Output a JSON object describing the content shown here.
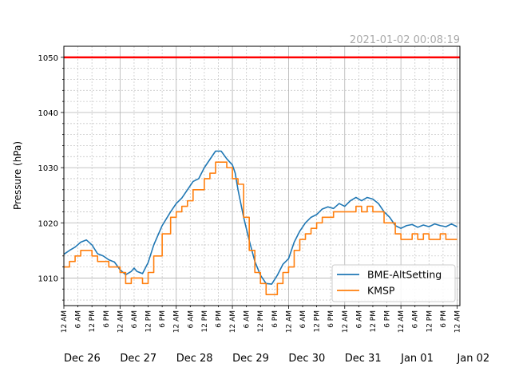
{
  "chart_data": {
    "type": "line",
    "timestamp": "2021-01-02 00:08:19",
    "ylabel": "Pressure (hPa)",
    "xlabel": "",
    "ylim": [
      1005,
      1052
    ],
    "xlim": [
      0,
      7.05
    ],
    "y_ticks": [
      1010,
      1020,
      1030,
      1040,
      1050
    ],
    "grid": true,
    "legend_position": "lower-right",
    "hour_tick_labels": [
      "12 AM",
      "6 AM",
      "12 PM",
      "6 PM"
    ],
    "day_labels": [
      "Dec 26",
      "Dec 27",
      "Dec 28",
      "Dec 29",
      "Dec 30",
      "Dec 31",
      "Jan 01",
      "Jan 02"
    ],
    "reference_line": {
      "value": 1050,
      "color": "#ff0000"
    },
    "series": [
      {
        "name": "BME-AltSetting",
        "color": "#1f77b4",
        "x": [
          0,
          0.1,
          0.2,
          0.3,
          0.4,
          0.5,
          0.6,
          0.7,
          0.8,
          0.9,
          1.0,
          1.1,
          1.2,
          1.25,
          1.3,
          1.4,
          1.5,
          1.6,
          1.75,
          1.9,
          2.0,
          2.1,
          2.2,
          2.3,
          2.4,
          2.5,
          2.6,
          2.7,
          2.8,
          2.9,
          3.0,
          3.05,
          3.1,
          3.2,
          3.3,
          3.4,
          3.5,
          3.6,
          3.7,
          3.8,
          3.9,
          4.0,
          4.1,
          4.2,
          4.3,
          4.4,
          4.5,
          4.6,
          4.7,
          4.8,
          4.9,
          5.0,
          5.1,
          5.2,
          5.3,
          5.4,
          5.5,
          5.6,
          5.7,
          5.8,
          5.9,
          6.0,
          6.1,
          6.2,
          6.3,
          6.4,
          6.5,
          6.6,
          6.7,
          6.8,
          6.9,
          7.0
        ],
        "y": [
          1014.3,
          1015.0,
          1015.6,
          1016.5,
          1016.9,
          1016.0,
          1014.4,
          1014.0,
          1013.3,
          1012.9,
          1011.5,
          1010.6,
          1011.2,
          1011.8,
          1011.2,
          1010.8,
          1012.8,
          1016.0,
          1019.5,
          1022.0,
          1023.5,
          1024.5,
          1026.0,
          1027.5,
          1028.0,
          1030.0,
          1031.5,
          1033.0,
          1033.0,
          1031.6,
          1030.5,
          1029.0,
          1026.0,
          1021.0,
          1016.8,
          1013.0,
          1010.5,
          1009.0,
          1008.9,
          1010.5,
          1012.5,
          1013.5,
          1016.5,
          1018.5,
          1020.0,
          1021.0,
          1021.5,
          1022.5,
          1022.9,
          1022.6,
          1023.5,
          1023.0,
          1024.0,
          1024.6,
          1024.0,
          1024.6,
          1024.3,
          1023.5,
          1022.0,
          1021.0,
          1019.5,
          1019.0,
          1019.5,
          1019.7,
          1019.2,
          1019.6,
          1019.3,
          1019.8,
          1019.5,
          1019.3,
          1019.8,
          1019.3
        ]
      },
      {
        "name": "KMSP",
        "color": "#ff7f0e",
        "step": true,
        "x": [
          0,
          0.1,
          0.2,
          0.3,
          0.4,
          0.5,
          0.6,
          0.7,
          0.8,
          0.9,
          1.0,
          1.1,
          1.2,
          1.3,
          1.4,
          1.5,
          1.6,
          1.75,
          1.9,
          2.0,
          2.1,
          2.2,
          2.3,
          2.4,
          2.5,
          2.6,
          2.7,
          2.8,
          2.9,
          3.0,
          3.1,
          3.2,
          3.3,
          3.4,
          3.5,
          3.6,
          3.7,
          3.8,
          3.9,
          4.0,
          4.1,
          4.2,
          4.3,
          4.4,
          4.5,
          4.6,
          4.7,
          4.8,
          4.9,
          5.0,
          5.1,
          5.2,
          5.3,
          5.4,
          5.5,
          5.6,
          5.7,
          5.8,
          5.9,
          6.0,
          6.1,
          6.2,
          6.3,
          6.4,
          6.5,
          6.6,
          6.7,
          6.8,
          6.9,
          7.0
        ],
        "y": [
          1012,
          1013,
          1014,
          1015,
          1015,
          1014,
          1013,
          1013,
          1012,
          1012,
          1011,
          1009,
          1010,
          1010,
          1009,
          1011,
          1014,
          1018,
          1021,
          1022,
          1023,
          1024,
          1026,
          1026,
          1028,
          1029,
          1031,
          1031,
          1030,
          1028,
          1027,
          1021,
          1015,
          1011,
          1009,
          1007,
          1007,
          1009,
          1011,
          1012,
          1015,
          1017,
          1018,
          1019,
          1020,
          1021,
          1021,
          1022,
          1022,
          1022,
          1022,
          1023,
          1022,
          1023,
          1022,
          1022,
          1020,
          1020,
          1018,
          1017,
          1017,
          1018,
          1017,
          1018,
          1017,
          1017,
          1018,
          1017,
          1017,
          1017
        ]
      }
    ]
  }
}
